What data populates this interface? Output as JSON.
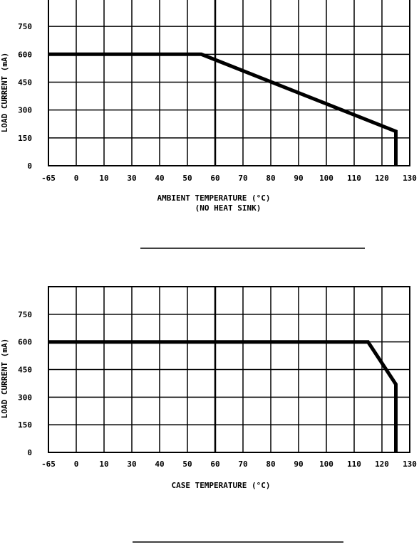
{
  "chart_data": [
    {
      "type": "line",
      "title": "",
      "xlabel": "AMBIENT TEMPERATURE (°C)",
      "xlabel_sub": "(NO HEAT SINK)",
      "ylabel": "LOAD CURRENT (mA)",
      "x_ticks": [
        "-65",
        "0",
        "10",
        "30",
        "40",
        "50",
        "60",
        "70",
        "80",
        "90",
        "100",
        "110",
        "120",
        "130"
      ],
      "y_ticks": [
        "0",
        "150",
        "300",
        "450",
        "600",
        "750"
      ],
      "ylim": [
        0,
        900
      ],
      "grid": true,
      "series": [
        {
          "x": [
            -65,
            55,
            125,
            125
          ],
          "y": [
            600,
            600,
            185,
            0
          ]
        }
      ]
    },
    {
      "type": "line",
      "title": "",
      "xlabel": "CASE TEMPERATURE (°C)",
      "xlabel_sub": "",
      "ylabel": "LOAD CURRENT (mA)",
      "x_ticks": [
        "-65",
        "0",
        "10",
        "30",
        "40",
        "50",
        "60",
        "70",
        "80",
        "90",
        "100",
        "110",
        "120",
        "130"
      ],
      "y_ticks": [
        "0",
        "150",
        "300",
        "450",
        "600",
        "750"
      ],
      "ylim": [
        0,
        900
      ],
      "grid": true,
      "series": [
        {
          "x": [
            -65,
            115,
            125,
            125
          ],
          "y": [
            600,
            600,
            370,
            0
          ]
        }
      ]
    }
  ]
}
